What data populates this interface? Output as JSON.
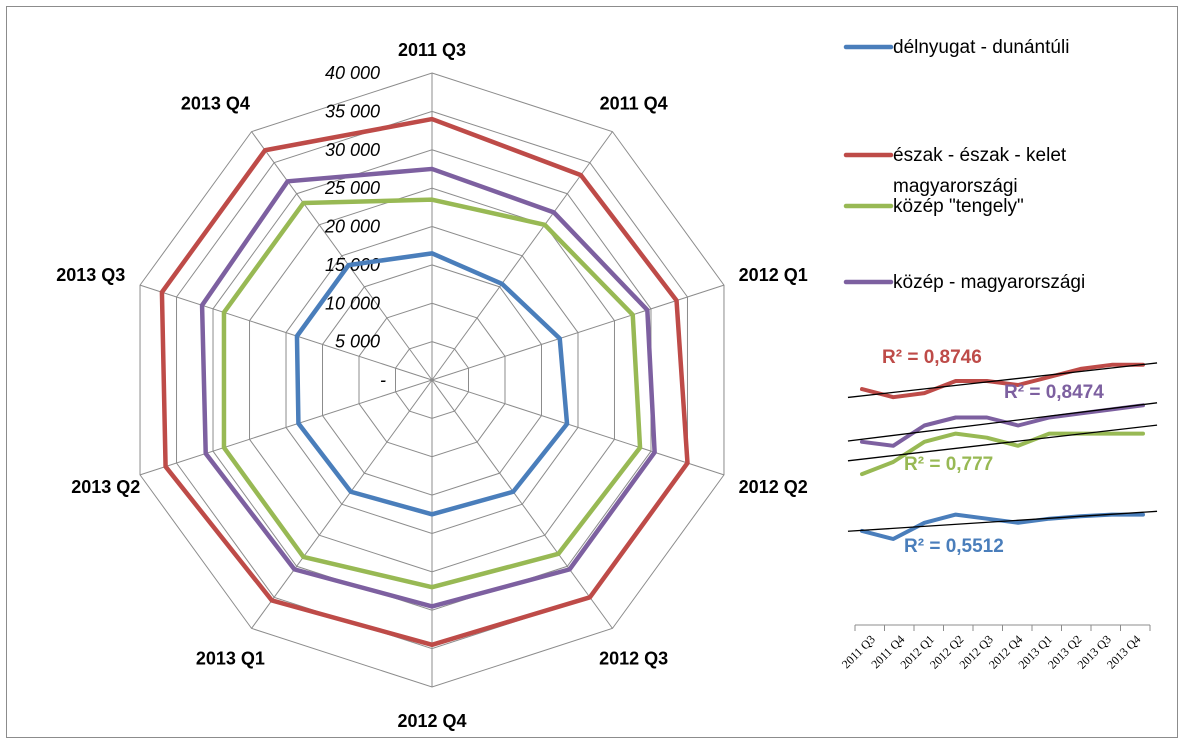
{
  "chart_data": [
    {
      "type": "radar",
      "title": "",
      "categories": [
        "2011 Q3",
        "2011 Q4",
        "2012 Q1",
        "2012 Q2",
        "2012 Q3",
        "2012 Q4",
        "2013 Q1",
        "2013 Q2",
        "2013 Q3",
        "2013 Q4"
      ],
      "radial_ticks": [
        "-",
        "5 000",
        "10 000",
        "15 000",
        "20 000",
        "25 000",
        "30 000",
        "35 000",
        "40 000"
      ],
      "rlim": [
        0,
        40000
      ],
      "grid": true,
      "legend_position": "right",
      "series": [
        {
          "name": "délnyugat - dunántúli",
          "color": "#4a7ebb",
          "values": [
            16500,
            15500,
            17500,
            18500,
            18000,
            17500,
            18000,
            18300,
            18500,
            18500
          ]
        },
        {
          "name": "észak - észak - kelet magyarországi",
          "color": "#be4b48",
          "values": [
            34000,
            33000,
            33500,
            35000,
            35000,
            34500,
            35500,
            36500,
            37000,
            37000
          ]
        },
        {
          "name": "közép \"tengely\"",
          "color": "#98b954",
          "values": [
            23500,
            25000,
            27500,
            28500,
            28000,
            27000,
            28500,
            28500,
            28500,
            28500
          ]
        },
        {
          "name": "közép - magyarországi",
          "color": "#7d60a0",
          "values": [
            27500,
            27000,
            29500,
            30500,
            30500,
            29500,
            30500,
            31000,
            31500,
            32000
          ]
        }
      ]
    },
    {
      "type": "line",
      "title": "",
      "x": [
        "2011 Q3",
        "2011 Q4",
        "2012 Q1",
        "2012 Q2",
        "2012 Q3",
        "2012 Q4",
        "2013 Q1",
        "2013 Q2",
        "2013 Q3",
        "2013 Q4"
      ],
      "xlabel": "",
      "ylabel": "",
      "grid": false,
      "series": [
        {
          "color": "#4a7ebb",
          "values": [
            16500,
            15500,
            17500,
            18500,
            18000,
            17500,
            18000,
            18300,
            18500,
            18500
          ],
          "trendline": true,
          "r2_label": "R² = 0,5512"
        },
        {
          "color": "#be4b48",
          "values": [
            34000,
            33000,
            33500,
            35000,
            35000,
            34500,
            35500,
            36500,
            37000,
            37000
          ],
          "trendline": true,
          "r2_label": "R² = 0,8746"
        },
        {
          "color": "#98b954",
          "values": [
            23500,
            25000,
            27500,
            28500,
            28000,
            27000,
            28500,
            28500,
            28500,
            28500
          ],
          "trendline": true,
          "r2_label": "R² = 0,777"
        },
        {
          "color": "#7d60a0",
          "values": [
            27500,
            27000,
            29500,
            30500,
            30500,
            29500,
            30500,
            31000,
            31500,
            32000
          ],
          "trendline": true,
          "r2_label": "R² = 0,8474"
        }
      ]
    }
  ]
}
